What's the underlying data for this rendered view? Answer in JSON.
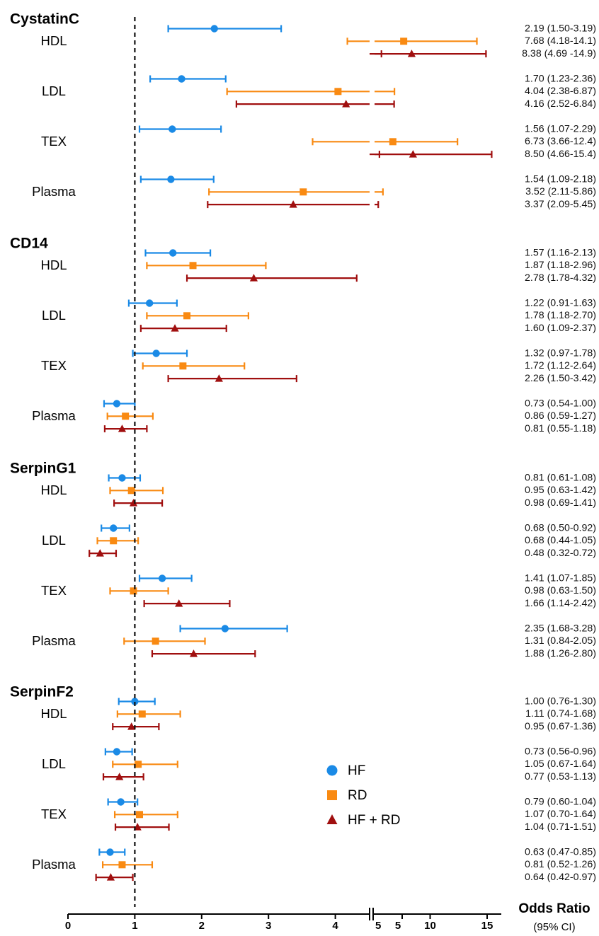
{
  "chart_data": {
    "type": "forest",
    "reference_line": 1,
    "x_axis": {
      "label": "Odds Ratio",
      "sublabel": "(95% CI)",
      "segments": [
        {
          "range": [
            0,
            5
          ],
          "ticks": [
            "0",
            "1",
            "2",
            "3",
            "4",
            "5"
          ]
        },
        {
          "range": [
            5,
            15
          ],
          "ticks": [
            "5",
            "10",
            "15"
          ]
        }
      ],
      "tick_values": [
        0,
        1,
        2,
        3,
        4,
        5,
        10,
        15
      ]
    },
    "colors": {
      "HF": "#1a8ae6",
      "RD": "#f98a12",
      "HF + RD": "#a00f0f"
    },
    "legend": [
      {
        "series": "HF",
        "label": "HF",
        "marker": "circle"
      },
      {
        "series": "RD",
        "label": "RD",
        "marker": "square"
      },
      {
        "series": "HF + RD",
        "label": "HF + RD",
        "marker": "triangle"
      }
    ],
    "legend_position": "lower-center",
    "groups": [
      {
        "name": "CystatinC",
        "subgroups": [
          {
            "name": "HDL",
            "rows": [
              {
                "series": "HF",
                "or": 2.19,
                "lo": 1.5,
                "hi": 3.19,
                "label": "2.19 (1.50-3.19)"
              },
              {
                "series": "RD",
                "or": 7.68,
                "lo": 4.18,
                "hi": 14.1,
                "label": "7.68 (4.18-14.1)"
              },
              {
                "series": "HF + RD",
                "or": 8.38,
                "lo": 4.69,
                "hi": 14.9,
                "label": "8.38 (4.69 -14.9)"
              }
            ]
          },
          {
            "name": "LDL",
            "rows": [
              {
                "series": "HF",
                "or": 1.7,
                "lo": 1.23,
                "hi": 2.36,
                "label": "1.70 (1.23-2.36)"
              },
              {
                "series": "RD",
                "or": 4.04,
                "lo": 2.38,
                "hi": 6.87,
                "label": "4.04 (2.38-6.87)"
              },
              {
                "series": "HF + RD",
                "or": 4.16,
                "lo": 2.52,
                "hi": 6.84,
                "label": "4.16 (2.52-6.84)"
              }
            ]
          },
          {
            "name": "TEX",
            "rows": [
              {
                "series": "HF",
                "or": 1.56,
                "lo": 1.07,
                "hi": 2.29,
                "label": "1.56 (1.07-2.29)"
              },
              {
                "series": "RD",
                "or": 6.73,
                "lo": 3.66,
                "hi": 12.4,
                "label": "6.73 (3.66-12.4)"
              },
              {
                "series": "HF + RD",
                "or": 8.5,
                "lo": 4.66,
                "hi": 15.4,
                "label": "8.50 (4.66-15.4)"
              }
            ]
          },
          {
            "name": "Plasma",
            "rows": [
              {
                "series": "HF",
                "or": 1.54,
                "lo": 1.09,
                "hi": 2.18,
                "label": "1.54 (1.09-2.18)"
              },
              {
                "series": "RD",
                "or": 3.52,
                "lo": 2.11,
                "hi": 5.86,
                "label": "3.52 (2.11-5.86)"
              },
              {
                "series": "HF + RD",
                "or": 3.37,
                "lo": 2.09,
                "hi": 5.45,
                "label": "3.37 (2.09-5.45)"
              }
            ]
          }
        ]
      },
      {
        "name": "CD14",
        "subgroups": [
          {
            "name": "HDL",
            "rows": [
              {
                "series": "HF",
                "or": 1.57,
                "lo": 1.16,
                "hi": 2.13,
                "label": "1.57 (1.16-2.13)"
              },
              {
                "series": "RD",
                "or": 1.87,
                "lo": 1.18,
                "hi": 2.96,
                "label": "1.87 (1.18-2.96)"
              },
              {
                "series": "HF + RD",
                "or": 2.78,
                "lo": 1.78,
                "hi": 4.32,
                "label": "2.78 (1.78-4.32)"
              }
            ]
          },
          {
            "name": "LDL",
            "rows": [
              {
                "series": "HF",
                "or": 1.22,
                "lo": 0.91,
                "hi": 1.63,
                "label": "1.22 (0.91-1.63)"
              },
              {
                "series": "RD",
                "or": 1.78,
                "lo": 1.18,
                "hi": 2.7,
                "label": "1.78 (1.18-2.70)"
              },
              {
                "series": "HF + RD",
                "or": 1.6,
                "lo": 1.09,
                "hi": 2.37,
                "label": "1.60 (1.09-2.37)"
              }
            ]
          },
          {
            "name": "TEX",
            "rows": [
              {
                "series": "HF",
                "or": 1.32,
                "lo": 0.97,
                "hi": 1.78,
                "label": "1.32 (0.97-1.78)"
              },
              {
                "series": "RD",
                "or": 1.72,
                "lo": 1.12,
                "hi": 2.64,
                "label": "1.72 (1.12-2.64)"
              },
              {
                "series": "HF + RD",
                "or": 2.26,
                "lo": 1.5,
                "hi": 3.42,
                "label": "2.26 (1.50-3.42)"
              }
            ]
          },
          {
            "name": "Plasma",
            "rows": [
              {
                "series": "HF",
                "or": 0.73,
                "lo": 0.54,
                "hi": 1.0,
                "label": "0.73 (0.54-1.00)"
              },
              {
                "series": "RD",
                "or": 0.86,
                "lo": 0.59,
                "hi": 1.27,
                "label": "0.86 (0.59-1.27)"
              },
              {
                "series": "HF + RD",
                "or": 0.81,
                "lo": 0.55,
                "hi": 1.18,
                "label": "0.81 (0.55-1.18)"
              }
            ]
          }
        ]
      },
      {
        "name": "SerpinG1",
        "subgroups": [
          {
            "name": "HDL",
            "rows": [
              {
                "series": "HF",
                "or": 0.81,
                "lo": 0.61,
                "hi": 1.08,
                "label": "0.81 (0.61-1.08)"
              },
              {
                "series": "RD",
                "or": 0.95,
                "lo": 0.63,
                "hi": 1.42,
                "label": "0.95 (0.63-1.42)"
              },
              {
                "series": "HF + RD",
                "or": 0.98,
                "lo": 0.69,
                "hi": 1.41,
                "label": "0.98 (0.69-1.41)"
              }
            ]
          },
          {
            "name": "LDL",
            "rows": [
              {
                "series": "HF",
                "or": 0.68,
                "lo": 0.5,
                "hi": 0.92,
                "label": "0.68 (0.50-0.92)"
              },
              {
                "series": "RD",
                "or": 0.68,
                "lo": 0.44,
                "hi": 1.05,
                "label": "0.68 (0.44-1.05)"
              },
              {
                "series": "HF + RD",
                "or": 0.48,
                "lo": 0.32,
                "hi": 0.72,
                "label": "0.48 (0.32-0.72)"
              }
            ]
          },
          {
            "name": "TEX",
            "rows": [
              {
                "series": "HF",
                "or": 1.41,
                "lo": 1.07,
                "hi": 1.85,
                "label": "1.41 (1.07-1.85)"
              },
              {
                "series": "RD",
                "or": 0.98,
                "lo": 0.63,
                "hi": 1.5,
                "label": "0.98 (0.63-1.50)"
              },
              {
                "series": "HF + RD",
                "or": 1.66,
                "lo": 1.14,
                "hi": 2.42,
                "label": "1.66 (1.14-2.42)"
              }
            ]
          },
          {
            "name": "Plasma",
            "rows": [
              {
                "series": "HF",
                "or": 2.35,
                "lo": 1.68,
                "hi": 3.28,
                "label": "2.35 (1.68-3.28)"
              },
              {
                "series": "RD",
                "or": 1.31,
                "lo": 0.84,
                "hi": 2.05,
                "label": "1.31 (0.84-2.05)"
              },
              {
                "series": "HF + RD",
                "or": 1.88,
                "lo": 1.26,
                "hi": 2.8,
                "label": "1.88 (1.26-2.80)"
              }
            ]
          }
        ]
      },
      {
        "name": "SerpinF2",
        "subgroups": [
          {
            "name": "HDL",
            "rows": [
              {
                "series": "HF",
                "or": 1.0,
                "lo": 0.76,
                "hi": 1.3,
                "label": "1.00 (0.76-1.30)"
              },
              {
                "series": "RD",
                "or": 1.11,
                "lo": 0.74,
                "hi": 1.68,
                "label": "1.11 (0.74-1.68)"
              },
              {
                "series": "HF + RD",
                "or": 0.95,
                "lo": 0.67,
                "hi": 1.36,
                "label": "0.95 (0.67-1.36)"
              }
            ]
          },
          {
            "name": "LDL",
            "rows": [
              {
                "series": "HF",
                "or": 0.73,
                "lo": 0.56,
                "hi": 0.96,
                "label": "0.73 (0.56-0.96)"
              },
              {
                "series": "RD",
                "or": 1.05,
                "lo": 0.67,
                "hi": 1.64,
                "label": "1.05 (0.67-1.64)"
              },
              {
                "series": "HF + RD",
                "or": 0.77,
                "lo": 0.53,
                "hi": 1.13,
                "label": "0.77 (0.53-1.13)"
              }
            ]
          },
          {
            "name": "TEX",
            "rows": [
              {
                "series": "HF",
                "or": 0.79,
                "lo": 0.6,
                "hi": 1.04,
                "label": "0.79 (0.60-1.04)"
              },
              {
                "series": "RD",
                "or": 1.07,
                "lo": 0.7,
                "hi": 1.64,
                "label": "1.07 (0.70-1.64)"
              },
              {
                "series": "HF + RD",
                "or": 1.04,
                "lo": 0.71,
                "hi": 1.51,
                "label": "1.04 (0.71-1.51)"
              }
            ]
          },
          {
            "name": "Plasma",
            "rows": [
              {
                "series": "HF",
                "or": 0.63,
                "lo": 0.47,
                "hi": 0.85,
                "label": "0.63 (0.47-0.85)"
              },
              {
                "series": "RD",
                "or": 0.81,
                "lo": 0.52,
                "hi": 1.26,
                "label": "0.81 (0.52-1.26)"
              },
              {
                "series": "HF + RD",
                "or": 0.64,
                "lo": 0.42,
                "hi": 0.97,
                "label": "0.64 (0.42-0.97)"
              }
            ]
          }
        ]
      }
    ]
  }
}
